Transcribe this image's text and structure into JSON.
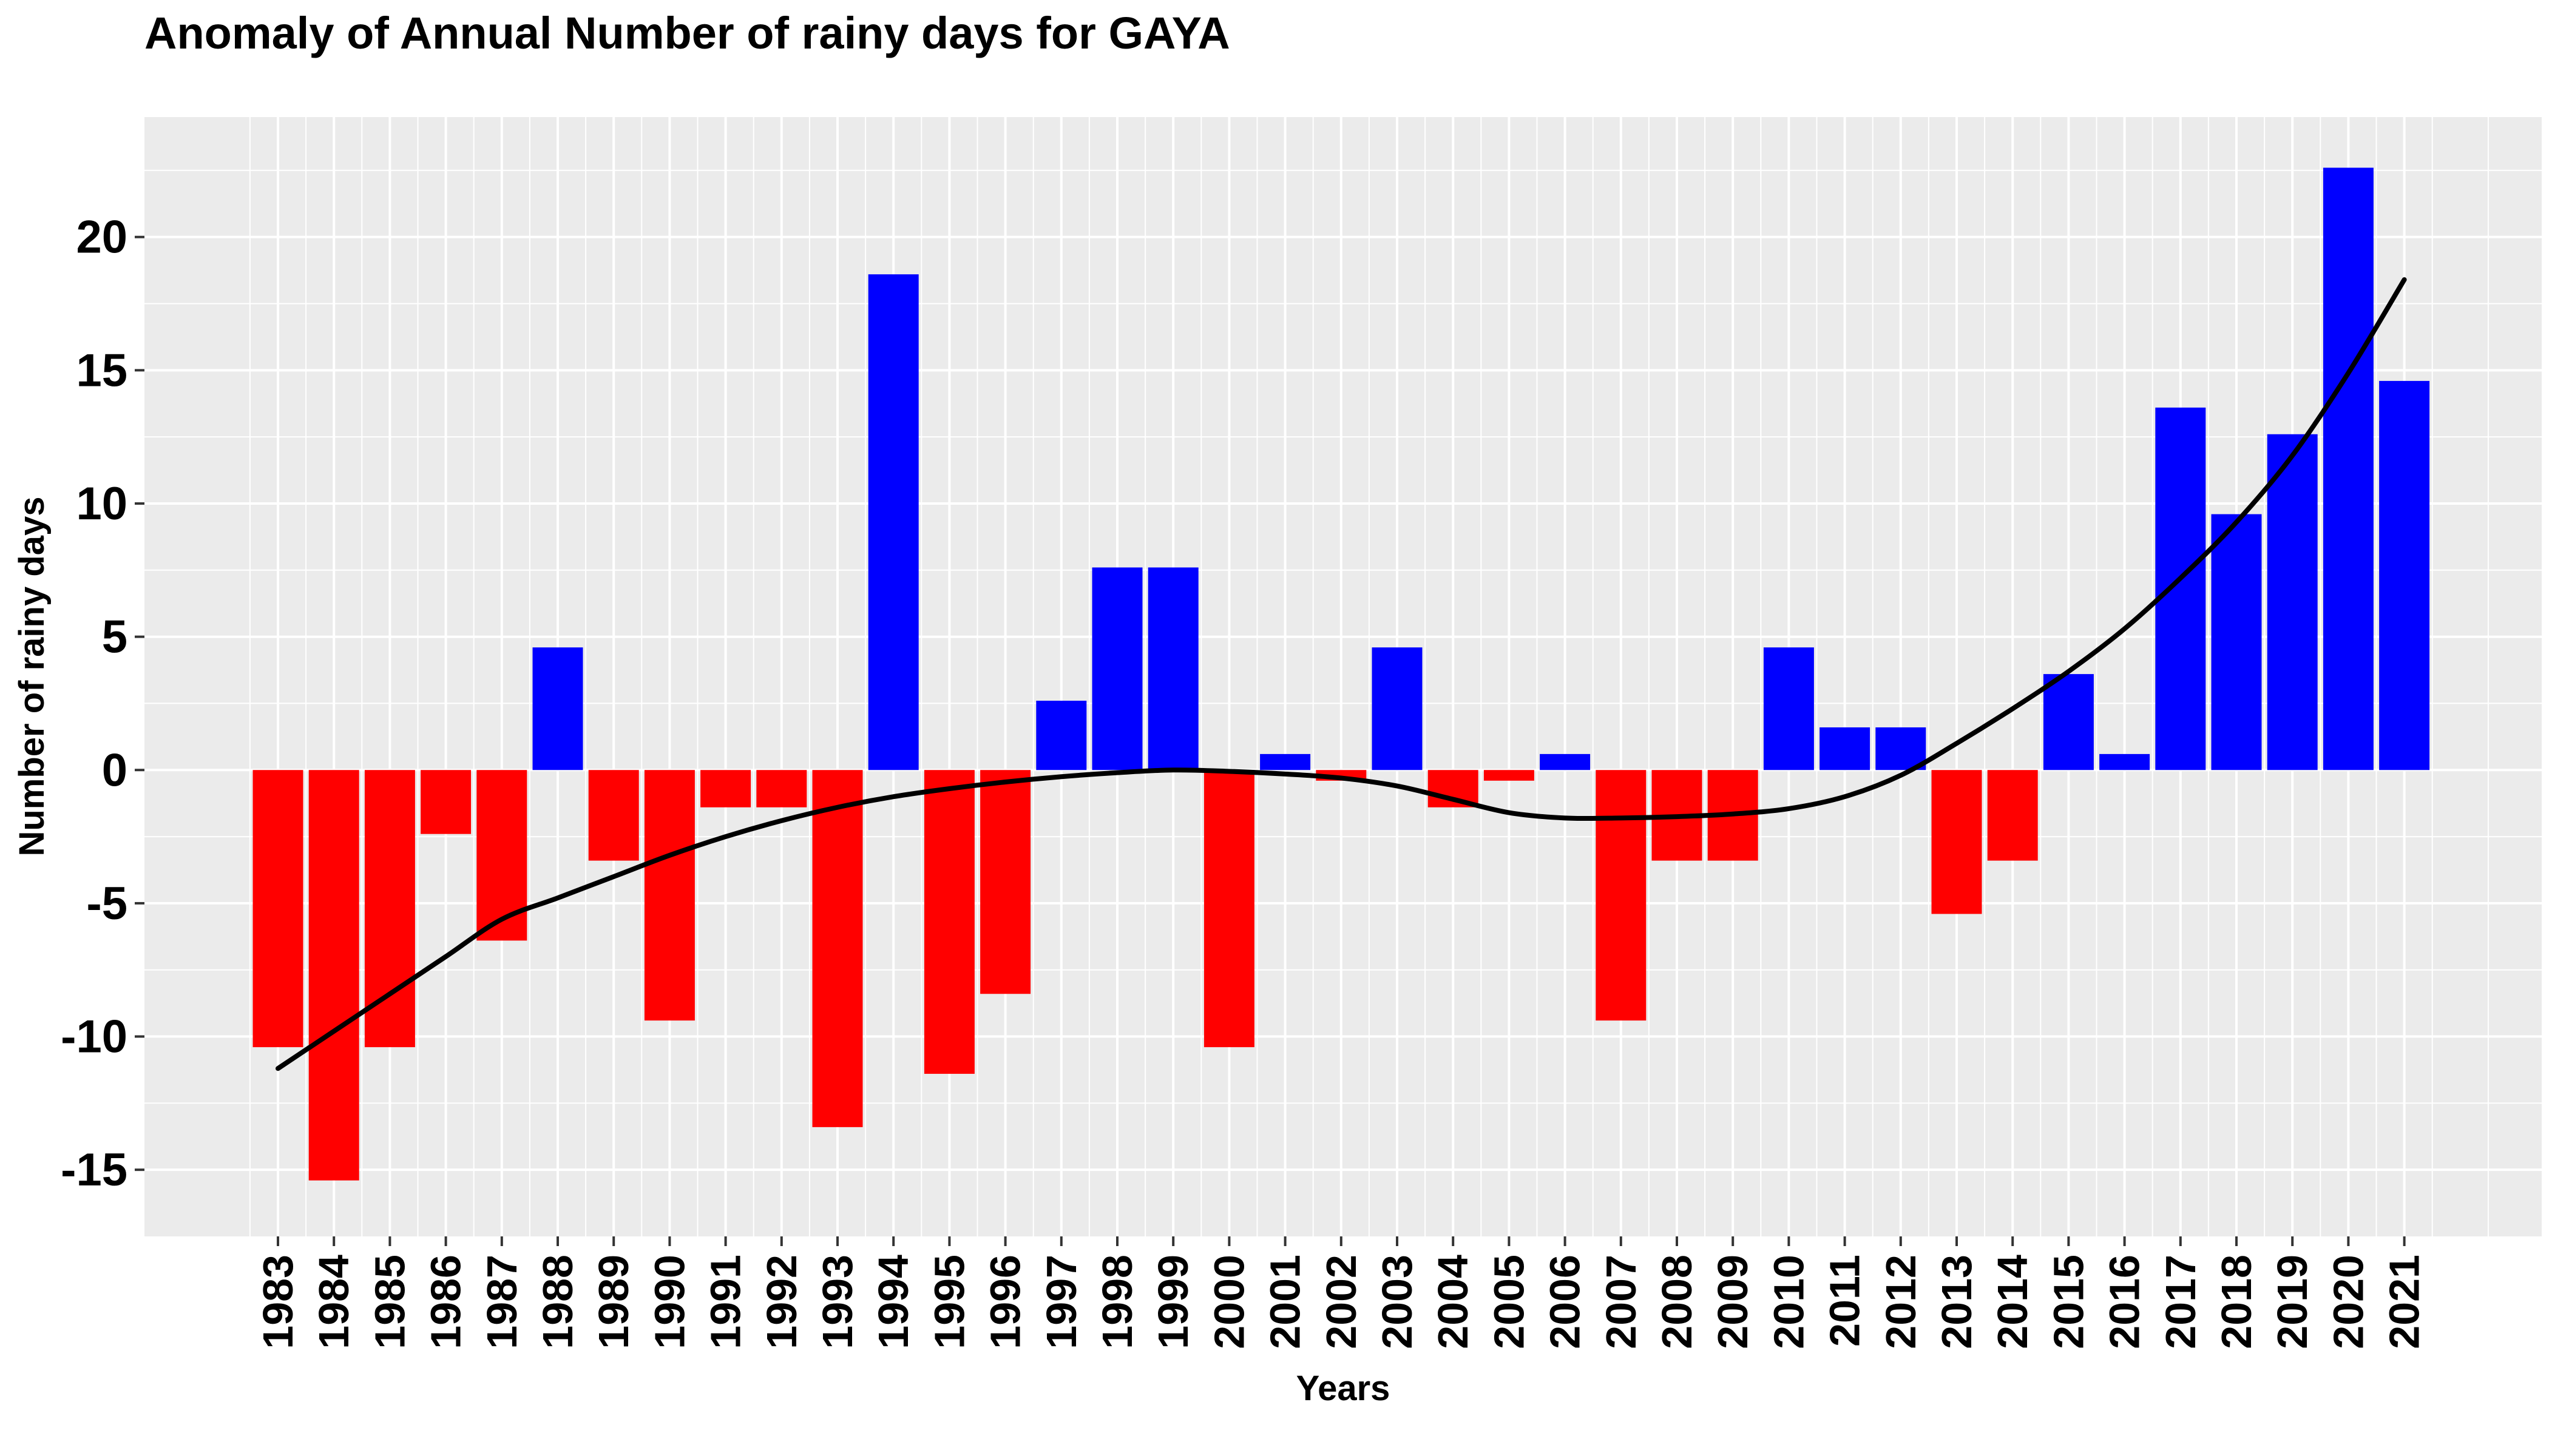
{
  "chart_data": {
    "type": "bar",
    "title": "Anomaly of Annual Number of rainy days for GAYA",
    "xlabel": "Years",
    "ylabel": "Number of rainy days",
    "categories": [
      "1983",
      "1984",
      "1985",
      "1986",
      "1987",
      "1988",
      "1989",
      "1990",
      "1991",
      "1992",
      "1993",
      "1994",
      "1995",
      "1996",
      "1997",
      "1998",
      "1999",
      "2000",
      "2001",
      "2002",
      "2003",
      "2004",
      "2005",
      "2006",
      "2007",
      "2008",
      "2009",
      "2010",
      "2011",
      "2012",
      "2013",
      "2014",
      "2015",
      "2016",
      "2017",
      "2018",
      "2019",
      "2020",
      "2021"
    ],
    "values": [
      -10.4,
      -15.4,
      -10.4,
      -2.4,
      -6.4,
      4.6,
      -3.4,
      -9.4,
      -1.4,
      -1.4,
      -13.4,
      18.6,
      -11.4,
      -8.4,
      2.6,
      7.6,
      7.6,
      -10.4,
      0.6,
      -0.4,
      4.6,
      -1.4,
      -0.4,
      0.6,
      -9.4,
      -3.4,
      -3.4,
      4.6,
      1.6,
      1.6,
      -5.4,
      -3.4,
      3.6,
      0.6,
      13.6,
      9.6,
      12.6,
      22.6,
      14.6
    ],
    "trend": [
      -11.2,
      -9.8,
      -8.4,
      -7.0,
      -5.6,
      -4.8,
      -4.0,
      -3.2,
      -2.5,
      -1.9,
      -1.4,
      -1.0,
      -0.7,
      -0.45,
      -0.25,
      -0.1,
      0.0,
      -0.05,
      -0.15,
      -0.3,
      -0.6,
      -1.1,
      -1.6,
      -1.8,
      -1.8,
      -1.75,
      -1.65,
      -1.45,
      -1.0,
      -0.2,
      1.0,
      2.3,
      3.7,
      5.3,
      7.2,
      9.3,
      11.8,
      14.9,
      18.4
    ],
    "yticks": [
      -15,
      -10,
      -5,
      0,
      5,
      10,
      15,
      20
    ],
    "ylim": [
      -17.5,
      24.5
    ],
    "colors": {
      "positive": "#0000ff",
      "negative": "#ff0000",
      "trend": "#000000",
      "panel": "#ebebeb",
      "grid": "#ffffff"
    },
    "grid": true,
    "legend": "none"
  }
}
